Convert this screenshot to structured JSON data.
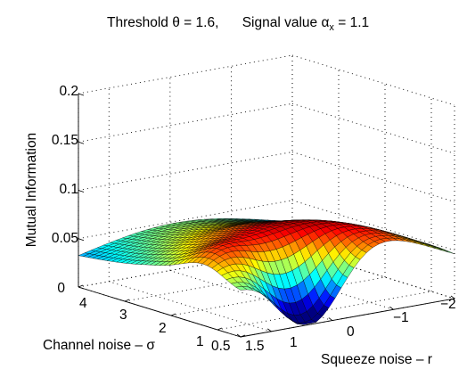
{
  "chart_data": {
    "type": "surface",
    "title": {
      "part1": "Threshold θ = 1.6,",
      "part2_main": "Signal value α",
      "part2_sub": "x",
      "part2_tail": " = 1.1"
    },
    "zlabel": "Mutual Information",
    "xlabel": "Channel noise – σ",
    "ylabel": "Squeeze noise – r",
    "z_ticks": [
      "0",
      "0.05",
      "0.1",
      "0.15",
      "0.2"
    ],
    "sigma_ticks": [
      "4",
      "3",
      "2",
      "1",
      "0.5"
    ],
    "r_ticks": [
      "1.5",
      "1",
      "0",
      "−1",
      "−2"
    ],
    "ranges": {
      "sigma": [
        0.5,
        4
      ],
      "r": [
        -2,
        1.5
      ],
      "z": [
        0,
        0.2
      ]
    },
    "grid": true,
    "colormap": "jet",
    "surface_samples": {
      "note_axes": "z values at sigma x r grid",
      "sigma": [
        0.5,
        1,
        2,
        3,
        4
      ],
      "r": [
        1.5,
        1,
        0,
        -1,
        -2
      ],
      "z": [
        [
          0.14,
          0.085,
          0.02,
          0.045,
          0.05
        ],
        [
          0.085,
          0.1,
          0.072,
          0.06,
          0.058
        ],
        [
          0.06,
          0.075,
          0.08,
          0.07,
          0.06
        ],
        [
          0.045,
          0.055,
          0.06,
          0.055,
          0.05
        ],
        [
          0.035,
          0.04,
          0.045,
          0.042,
          0.038
        ]
      ]
    }
  }
}
